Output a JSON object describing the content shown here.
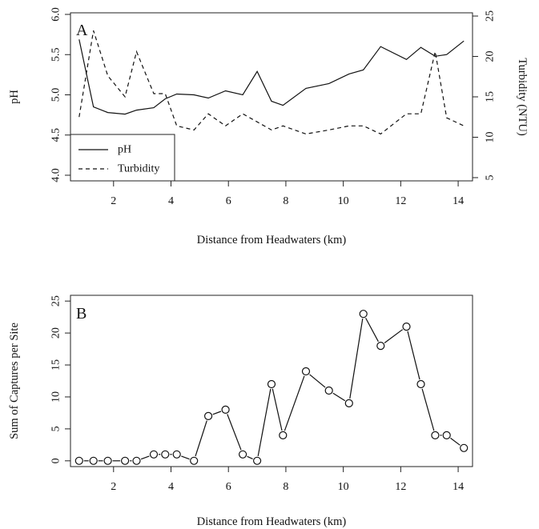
{
  "chart_data": [
    {
      "type": "line",
      "panel_label": "A",
      "xlabel": "Distance from Headwaters (km)",
      "ylabel": "pH",
      "ylabel_right": "Turbidity (NTU)",
      "xlim": [
        0.5,
        14.5
      ],
      "ylim": [
        3.93,
        6.02
      ],
      "ylim_right": [
        4.6,
        25.4
      ],
      "x_ticks": [
        2,
        4,
        6,
        8,
        10,
        12,
        14
      ],
      "y_ticks": [
        4.0,
        4.5,
        5.0,
        5.5,
        6.0
      ],
      "y_ticks_right": [
        5,
        10,
        15,
        20,
        25
      ],
      "legend": {
        "position": "bottom-left",
        "entries": [
          "pH",
          "Turbidity"
        ]
      },
      "series": [
        {
          "name": "pH",
          "axis": "left",
          "style": "solid",
          "x": [
            0.8,
            1.3,
            1.8,
            2.4,
            2.8,
            3.4,
            3.8,
            4.2,
            4.8,
            5.3,
            5.9,
            6.5,
            7.0,
            7.5,
            7.9,
            8.7,
            9.5,
            10.2,
            10.7,
            11.3,
            12.2,
            12.7,
            13.2,
            13.6,
            14.2
          ],
          "y": [
            5.69,
            4.85,
            4.78,
            4.76,
            4.81,
            4.84,
            4.95,
            5.01,
            5.0,
            4.96,
            5.05,
            5.0,
            5.29,
            4.92,
            4.87,
            5.08,
            5.14,
            5.26,
            5.31,
            5.6,
            5.44,
            5.59,
            5.48,
            5.5,
            5.67
          ]
        },
        {
          "name": "Turbidity",
          "axis": "right",
          "style": "dashed",
          "x": [
            0.8,
            1.3,
            1.8,
            2.4,
            2.8,
            3.4,
            3.8,
            4.2,
            4.8,
            5.3,
            5.9,
            6.5,
            7.0,
            7.5,
            7.9,
            8.7,
            9.5,
            10.2,
            10.7,
            11.3,
            12.2,
            12.7,
            13.2,
            13.6,
            14.2
          ],
          "y": [
            12.5,
            23.2,
            17.6,
            15.0,
            20.6,
            15.4,
            15.4,
            11.4,
            10.9,
            12.9,
            11.4,
            12.9,
            11.9,
            10.9,
            11.4,
            10.4,
            10.9,
            11.4,
            11.4,
            10.4,
            12.9,
            12.9,
            20.6,
            12.4,
            11.4
          ]
        }
      ]
    },
    {
      "type": "scatter",
      "style": "line-and-points",
      "panel_label": "B",
      "xlabel": "Distance from Headwaters (km)",
      "ylabel": "Sum of Captures per Site",
      "xlim": [
        0.5,
        14.5
      ],
      "ylim": [
        -0.9,
        25.9
      ],
      "x_ticks": [
        2,
        4,
        6,
        8,
        10,
        12,
        14
      ],
      "y_ticks": [
        0,
        5,
        10,
        15,
        20,
        25
      ],
      "series": [
        {
          "x": [
            0.8,
            1.3,
            1.8,
            2.4,
            2.8,
            3.4,
            3.8,
            4.2,
            4.8,
            5.3,
            5.9,
            6.5,
            7.0,
            7.5,
            7.9,
            8.7,
            9.5,
            10.2,
            10.7,
            11.3,
            12.2,
            12.7,
            13.2,
            13.6,
            14.2
          ],
          "y": [
            0,
            0,
            0,
            0,
            0,
            1,
            1,
            1,
            0,
            7,
            8,
            1,
            0,
            12,
            4,
            14,
            11,
            9,
            23,
            18,
            21,
            12,
            4,
            4,
            2
          ]
        }
      ]
    }
  ]
}
